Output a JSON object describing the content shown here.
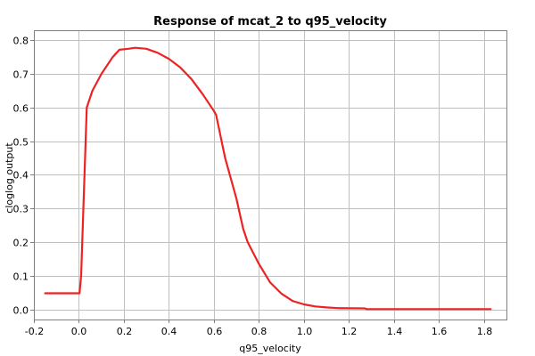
{
  "chart_data": {
    "type": "line",
    "title": "Response of mcat_2 to q95_velocity",
    "xlabel": "q95_velocity",
    "ylabel": "cloglog output",
    "xlim": [
      -0.2,
      1.9
    ],
    "ylim": [
      -0.03,
      0.83
    ],
    "xticks": [
      -0.2,
      0.0,
      0.2,
      0.4,
      0.6,
      0.8,
      1.0,
      1.2,
      1.4,
      1.6,
      1.8
    ],
    "xtick_labels": [
      "-0.2",
      "0.0",
      "0.2",
      "0.4",
      "0.6",
      "0.8",
      "1.0",
      "1.2",
      "1.4",
      "1.6",
      "1.8"
    ],
    "yticks": [
      0.0,
      0.1,
      0.2,
      0.3,
      0.4,
      0.5,
      0.6,
      0.7,
      0.8
    ],
    "ytick_labels": [
      "0.0",
      "0.1",
      "0.2",
      "0.3",
      "0.4",
      "0.5",
      "0.6",
      "0.7",
      "0.8"
    ],
    "grid": true,
    "line_color": "#ee2222",
    "series": [
      {
        "x": [
          -0.15,
          -0.1,
          0.0,
          0.003,
          0.01,
          0.02,
          0.035,
          0.06,
          0.1,
          0.15,
          0.18,
          0.22,
          0.25,
          0.3,
          0.35,
          0.4,
          0.45,
          0.5,
          0.55,
          0.6,
          0.61,
          0.65,
          0.7,
          0.73,
          0.75,
          0.8,
          0.85,
          0.9,
          0.95,
          1.0,
          1.05,
          1.1,
          1.15,
          1.27,
          1.28,
          1.5,
          1.83
        ],
        "y": [
          0.048,
          0.048,
          0.048,
          0.048,
          0.1,
          0.3,
          0.6,
          0.65,
          0.7,
          0.75,
          0.772,
          0.775,
          0.778,
          0.775,
          0.763,
          0.745,
          0.72,
          0.685,
          0.64,
          0.59,
          0.578,
          0.45,
          0.33,
          0.24,
          0.2,
          0.135,
          0.08,
          0.047,
          0.025,
          0.015,
          0.009,
          0.006,
          0.004,
          0.003,
          0.001,
          0.001,
          0.001
        ]
      }
    ]
  }
}
